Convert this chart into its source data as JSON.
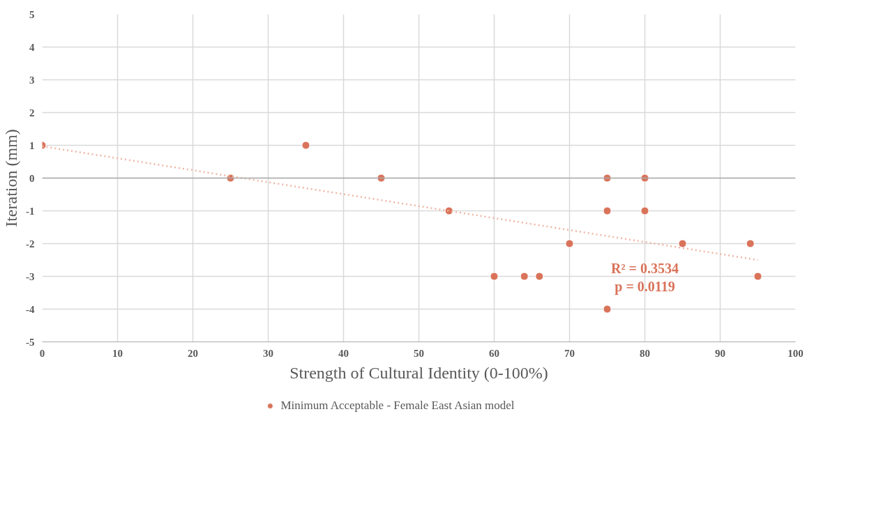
{
  "chart_data": {
    "type": "scatter",
    "xlabel": "Strength of Cultural Identity (0-100%)",
    "ylabel": "Iteration (mm)",
    "xlim": [
      0,
      100
    ],
    "xticks": [
      0,
      10,
      20,
      30,
      40,
      50,
      60,
      70,
      80,
      90,
      100
    ],
    "ylim": [
      -5,
      5
    ],
    "yticks": [
      -5,
      -4,
      -3,
      -2,
      -1,
      0,
      1,
      2,
      3,
      4,
      5
    ],
    "grid": true,
    "legend": "bottom",
    "marker": "circle",
    "series": [
      {
        "name": "Minimum Acceptable - Female East Asian model",
        "color": "#d9735a",
        "x": [
          0,
          25,
          35,
          45,
          54,
          60,
          64,
          66,
          70,
          75,
          75,
          75,
          80,
          80,
          85,
          94,
          95
        ],
        "values": [
          1,
          0,
          1,
          0,
          -1,
          -3,
          -3,
          -3,
          -2,
          0,
          -1,
          -4,
          0,
          -1,
          -2,
          -2,
          -3
        ]
      },
      {
        "color": "#f0b5a5",
        "type": "line",
        "marker": "none",
        "line_style": "dotted",
        "x": [
          0,
          95
        ],
        "values": [
          0.97,
          -2.5
        ]
      }
    ],
    "annotations": [
      "R² = 0.3534",
      "p = 0.0119"
    ]
  }
}
